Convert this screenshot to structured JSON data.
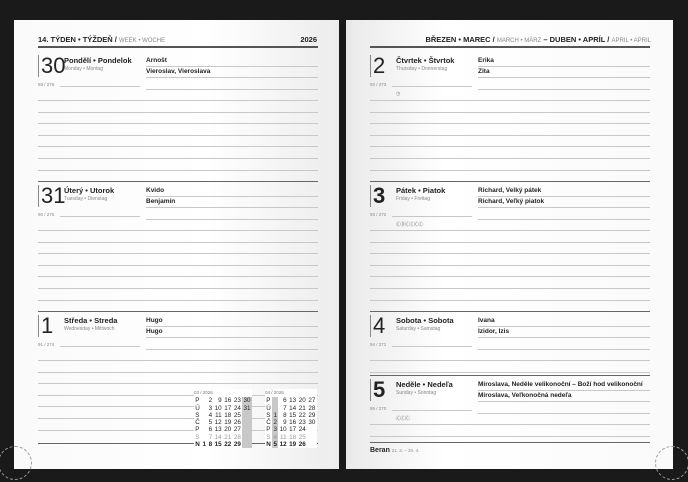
{
  "left_page": {
    "header": {
      "week": "14. TÝDEN • TÝŽDEŇ /",
      "week_en_de": "WEEK • WOCHE",
      "year": "2026"
    },
    "days": [
      {
        "num": "30",
        "name": "Pondělí • Pondelok",
        "sub": "Monday • Montag",
        "doy": "89 / 276",
        "namedays": [
          "Arnošt",
          "Vieroslav, Vieroslava"
        ],
        "icons": ""
      },
      {
        "num": "31",
        "name": "Úterý • Utorok",
        "sub": "Tuesday • Dienstag",
        "doy": "90 / 275",
        "namedays": [
          "Kvido",
          "Benjamín"
        ],
        "icons": ""
      },
      {
        "num": "1",
        "name": "Středa • Streda",
        "sub": "Wednesday • Mittwoch",
        "doy": "91 / 274",
        "namedays": [
          "Hugo",
          "Hugo"
        ],
        "icons": ""
      }
    ],
    "mini_calendars": [
      {
        "title": "03 / 2026",
        "rows": [
          [
            "P",
            "",
            "2",
            "9",
            "16",
            "23",
            "30"
          ],
          [
            "Ú",
            "",
            "3",
            "10",
            "17",
            "24",
            "31"
          ],
          [
            "S",
            "",
            "4",
            "11",
            "18",
            "25",
            ""
          ],
          [
            "Č",
            "",
            "5",
            "12",
            "19",
            "26",
            ""
          ],
          [
            "P",
            "",
            "6",
            "13",
            "20",
            "27",
            ""
          ],
          [
            "S",
            "",
            "7",
            "14",
            "21",
            "28",
            ""
          ],
          [
            "N",
            "1",
            "8",
            "15",
            "22",
            "29",
            ""
          ]
        ],
        "highlight_col": 6
      },
      {
        "title": "04 / 2026",
        "rows": [
          [
            "P",
            "",
            "6",
            "13",
            "20",
            "27"
          ],
          [
            "Ú",
            "",
            "7",
            "14",
            "21",
            "28"
          ],
          [
            "S",
            "1",
            "8",
            "15",
            "22",
            "29"
          ],
          [
            "Č",
            "2",
            "9",
            "16",
            "23",
            "30"
          ],
          [
            "P",
            "3",
            "10",
            "17",
            "24",
            ""
          ],
          [
            "S",
            "4",
            "11",
            "18",
            "25",
            ""
          ],
          [
            "N",
            "5",
            "12",
            "19",
            "26",
            ""
          ]
        ],
        "highlight_col": 1
      }
    ]
  },
  "right_page": {
    "header": {
      "m1": "BŘEZEN • MAREC /",
      "m1_en_de": "MARCH • MÄRZ",
      "sep": " – ",
      "m2": "DUBEN • APRÍL /",
      "m2_en_de": "APRIL • APRIL"
    },
    "days": [
      {
        "num": "2",
        "name": "Čtvrtek • Štvrtok",
        "sub": "Thursday • Donnerstag",
        "doy": "92 / 273",
        "namedays": [
          "Erika",
          "Zita"
        ],
        "icons": "◷"
      },
      {
        "num": "3",
        "name": "Pátek • Piatok",
        "sub": "Friday • Freitag",
        "doy": "93 / 272",
        "namedays": [
          "Richard, Velký pátek",
          "Richard, Veľký piatok"
        ],
        "icons": "ⒸⒹⒸⒸⒸⒸ"
      },
      {
        "num": "4",
        "name": "Sobota • Sobota",
        "sub": "Saturday • Samstag",
        "doy": "94 / 271",
        "namedays": [
          "Ivana",
          "Izidor, Izis"
        ],
        "icons": ""
      },
      {
        "num": "5",
        "name": "Neděle • Nedeľa",
        "sub": "Sunday • Sonntag",
        "doy": "95 / 270",
        "namedays": [
          "Miroslava, Neděle velikonoční – Boží hod velikonoční",
          "Miroslava, Veľkonočná nedeľa"
        ],
        "icons": "ⒸⒸⒸ"
      }
    ],
    "footer": {
      "sign": "Beran",
      "dates": "21. 3. – 20. 4."
    }
  }
}
